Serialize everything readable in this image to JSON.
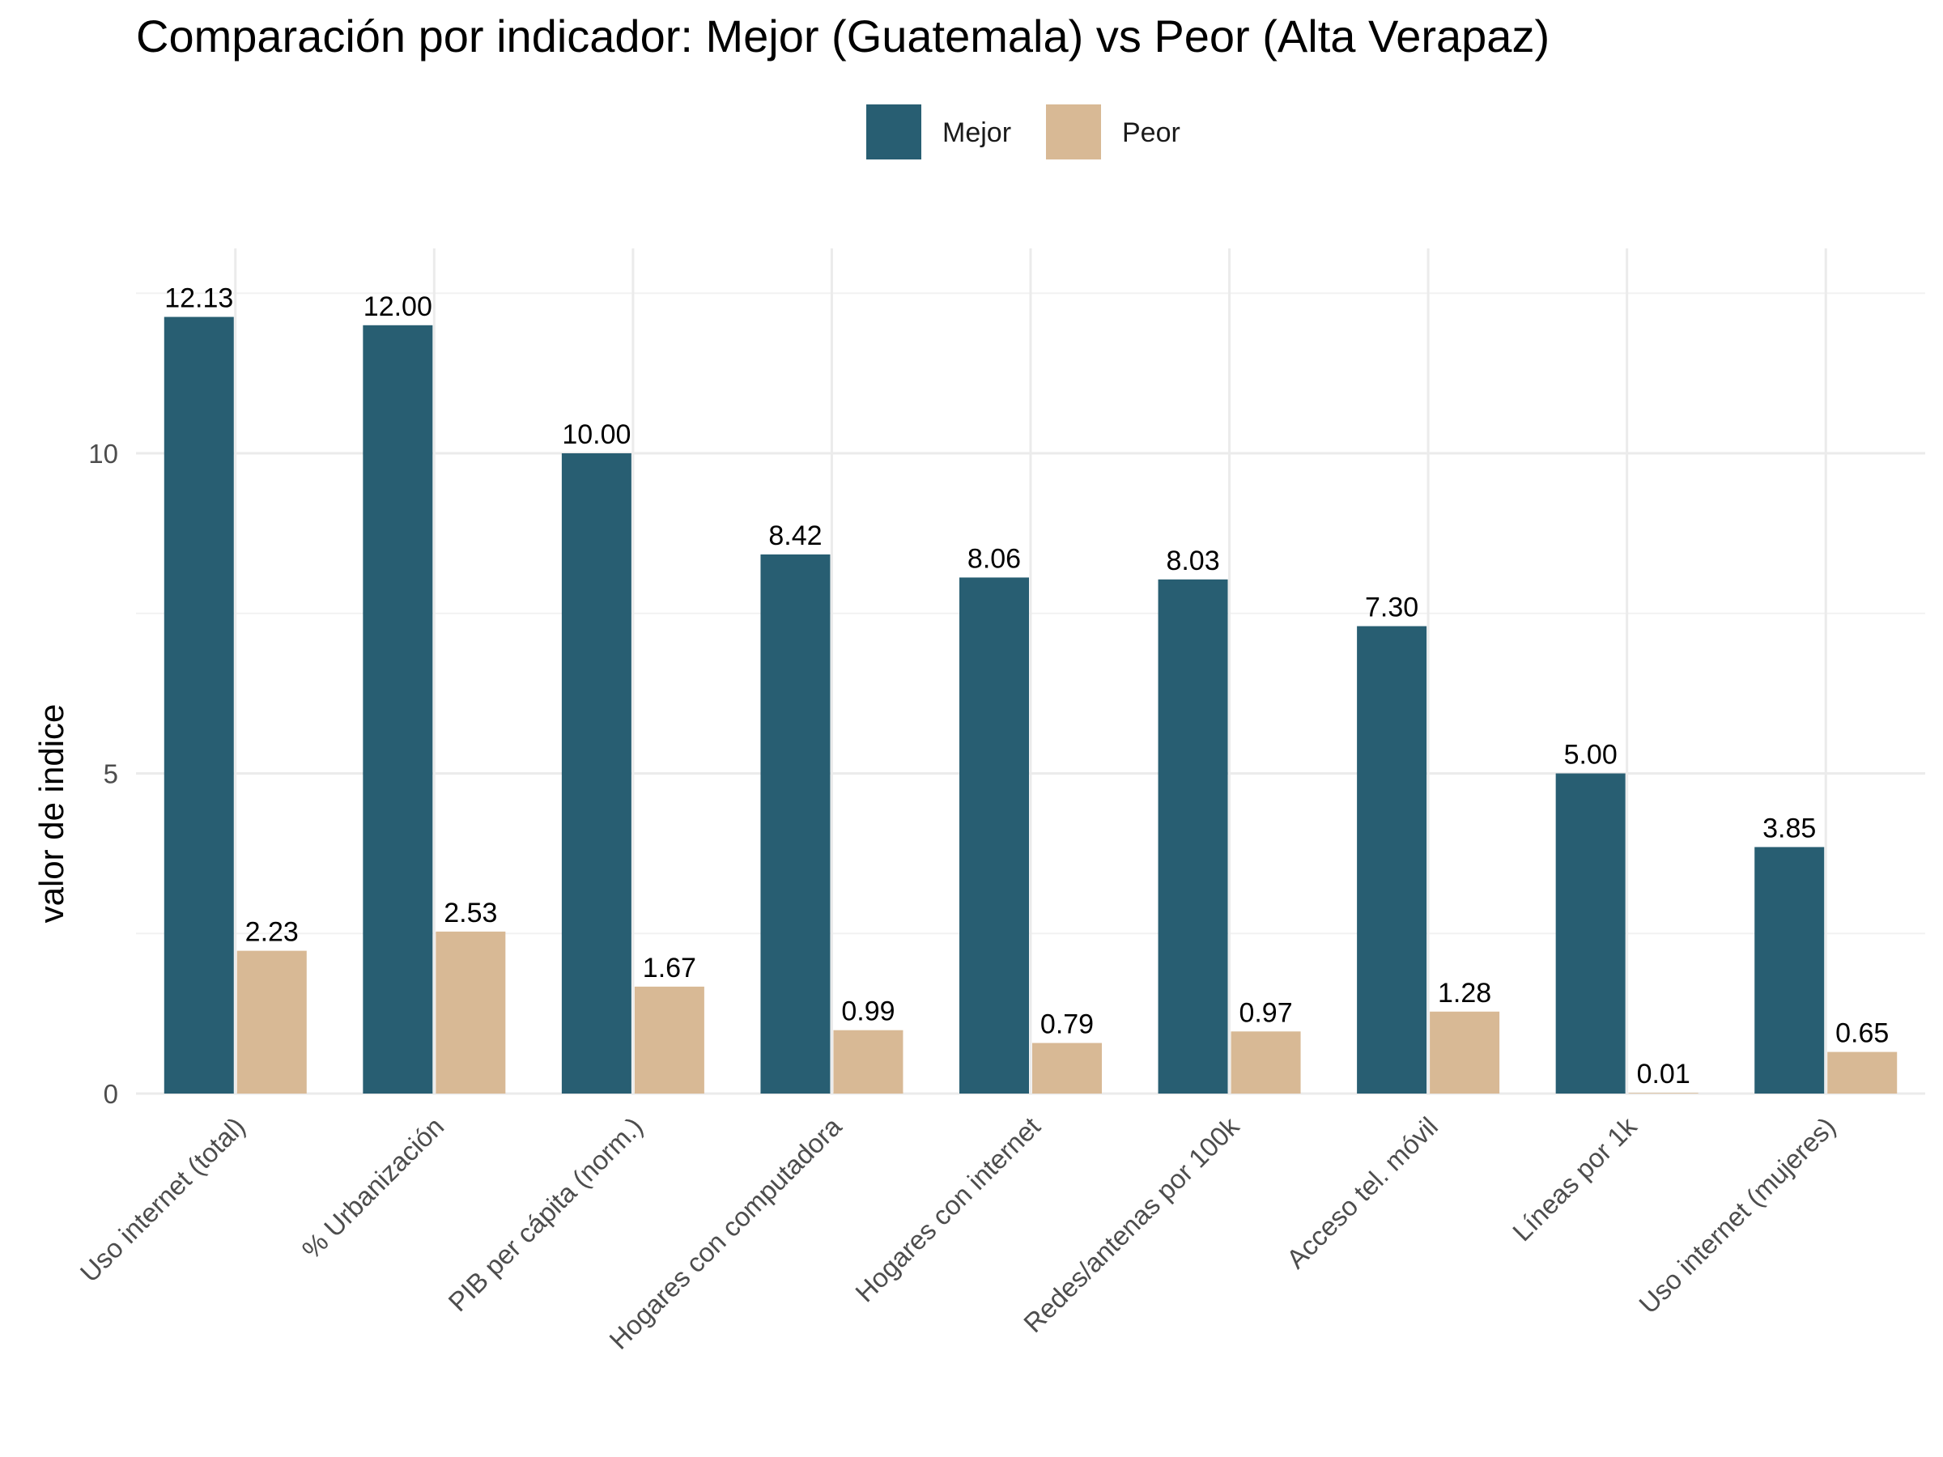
{
  "chart_data": {
    "type": "bar",
    "title": "Comparación por indicador: Mejor (Guatemala) vs Peor (Alta Verapaz)",
    "xlabel": "",
    "ylabel": "valor de indice",
    "ylim": [
      0,
      13.2
    ],
    "yticks": [
      0,
      5,
      10
    ],
    "grid": true,
    "legend_position": "top",
    "categories": [
      "Uso internet (total)",
      "% Urbanización",
      "PIB per cápita (norm.)",
      "Hogares con computadora",
      "Hogares con internet",
      "Redes/antenas por 100k",
      "Acceso tel. móvil",
      "Líneas por 1k",
      "Uso internet (mujeres)"
    ],
    "series": [
      {
        "name": "Mejor",
        "color": "#285e72",
        "values": [
          12.13,
          12.0,
          10.0,
          8.42,
          8.06,
          8.03,
          7.3,
          5.0,
          3.85
        ],
        "labels": [
          "12.13",
          "12.00",
          "10.00",
          "8.42",
          "8.06",
          "8.03",
          "7.30",
          "5.00",
          "3.85"
        ]
      },
      {
        "name": "Peor",
        "color": "#d8b995",
        "values": [
          2.23,
          2.53,
          1.67,
          0.99,
          0.79,
          0.97,
          1.28,
          0.01,
          0.65
        ],
        "labels": [
          "2.23",
          "2.53",
          "1.67",
          "0.99",
          "0.79",
          "0.97",
          "1.28",
          "0.01",
          "0.65"
        ]
      }
    ]
  }
}
